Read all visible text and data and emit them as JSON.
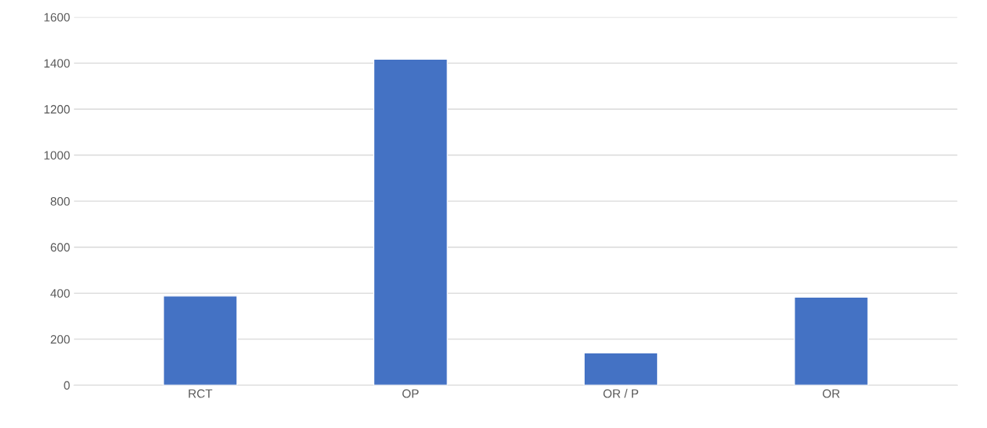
{
  "chart_data": {
    "type": "bar",
    "categories": [
      "RCT",
      "OP",
      "OR / P",
      "OR"
    ],
    "values": [
      388,
      1417,
      141,
      383
    ],
    "color": "#4472c4",
    "ylim": [
      0,
      1600
    ],
    "yticks": [
      0,
      200,
      400,
      600,
      800,
      1000,
      1200,
      1400,
      1600
    ],
    "grid": "y",
    "legend": false
  }
}
